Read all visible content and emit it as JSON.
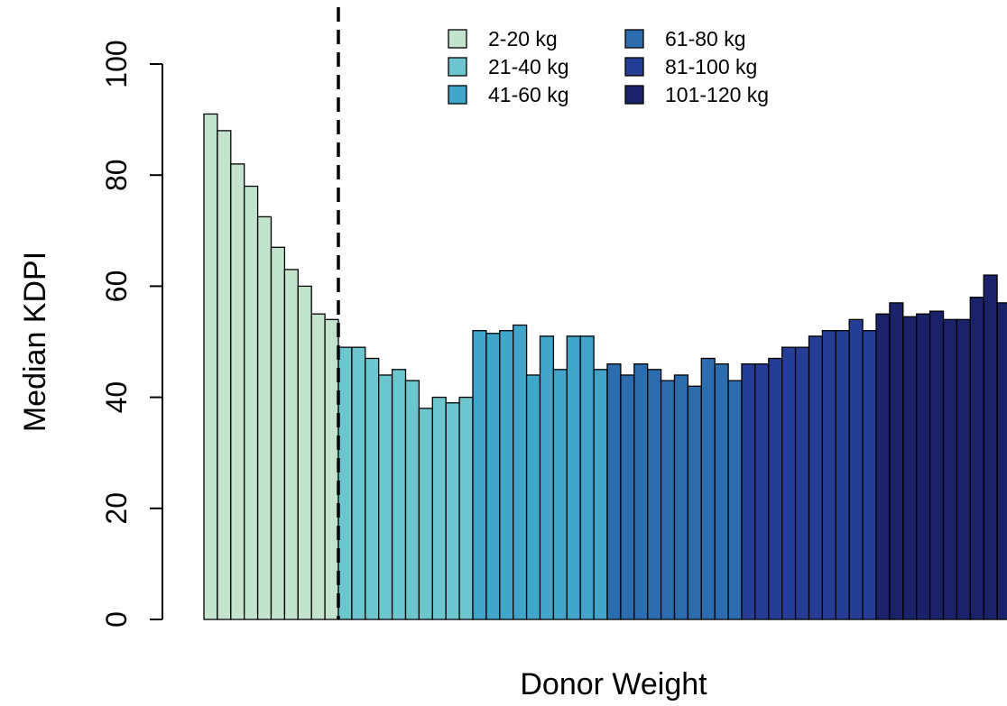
{
  "chart_data": {
    "type": "bar",
    "title": "",
    "xlabel": "Donor Weight",
    "ylabel": "Median KDPI",
    "ylim": [
      0,
      100
    ],
    "yticks": [
      0,
      20,
      40,
      60,
      80,
      100
    ],
    "grid": false,
    "legend_position": "top",
    "reference_line": {
      "style": "dashed",
      "after_bar_index": 9,
      "color": "#000000"
    },
    "series": [
      {
        "name": "2-20 kg",
        "color": "#c2e4cd",
        "values": [
          91,
          88,
          82,
          78,
          72.5,
          67,
          63,
          60,
          55,
          54
        ]
      },
      {
        "name": "21-40 kg",
        "color": "#6dc5cd",
        "values": [
          49,
          49,
          47,
          44,
          45,
          43,
          38,
          40,
          39,
          40
        ]
      },
      {
        "name": "41-60 kg",
        "color": "#41a5c9",
        "values": [
          52,
          51.5,
          52,
          53,
          44,
          51,
          45,
          51,
          51,
          45
        ]
      },
      {
        "name": "61-80 kg",
        "color": "#2c6db0",
        "values": [
          46,
          44,
          46,
          45,
          43,
          44,
          42,
          47,
          46,
          43
        ]
      },
      {
        "name": "81-100 kg",
        "color": "#253d95",
        "values": [
          46,
          46,
          47,
          49,
          49,
          51,
          52,
          52,
          54,
          52
        ]
      },
      {
        "name": "101-120 kg",
        "color": "#1a226a",
        "values": [
          55,
          57,
          54.5,
          55,
          55.5,
          54,
          54,
          58,
          62,
          57
        ]
      }
    ]
  }
}
